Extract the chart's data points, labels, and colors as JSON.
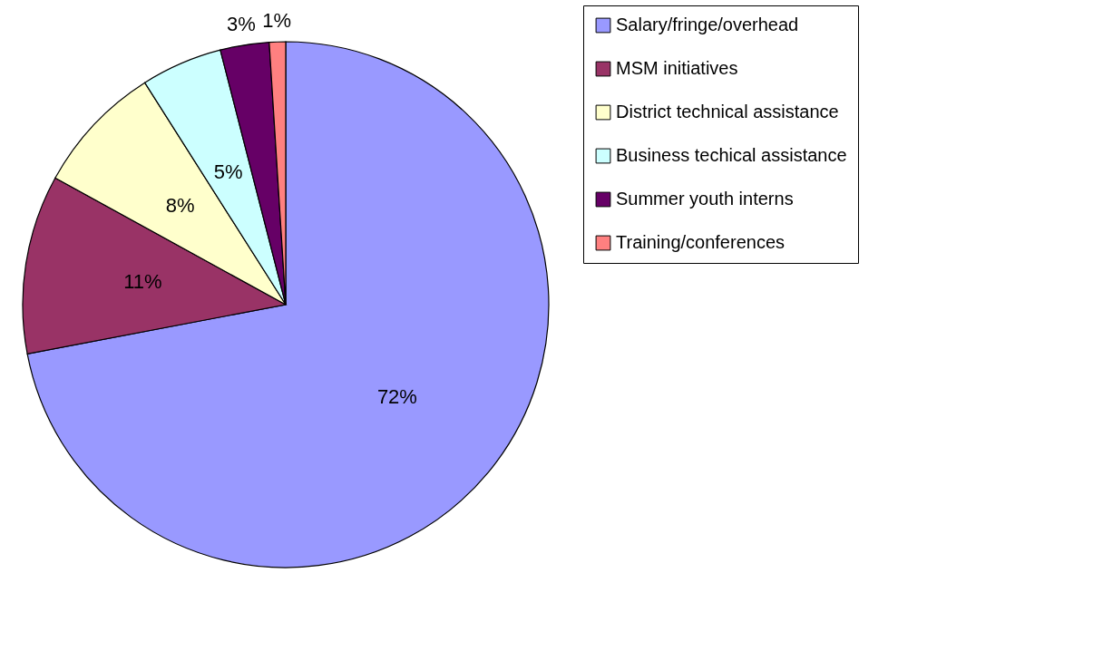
{
  "chart_data": {
    "type": "pie",
    "categories": [
      "Salary/fringe/overhead",
      "MSM initiatives",
      "District technical assistance",
      "Business techical assistance",
      "Summer youth interns",
      "Training/conferences"
    ],
    "values": [
      72,
      11,
      8,
      5,
      3,
      1
    ],
    "value_labels": [
      "72%",
      "11%",
      "8%",
      "5%",
      "3%",
      "1%"
    ],
    "colors": [
      "#9999ff",
      "#993366",
      "#ffffcc",
      "#ccffff",
      "#660066",
      "#ff8080"
    ],
    "legend": "right"
  }
}
